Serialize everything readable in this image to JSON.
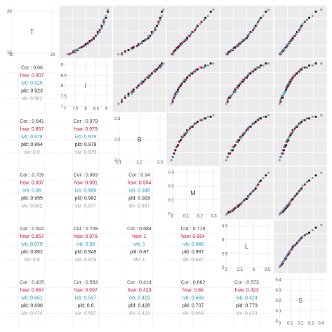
{
  "chart_data": {
    "type": "scatter-matrix",
    "variables": [
      "T",
      "I",
      "B",
      "M",
      "L",
      "S"
    ],
    "groups": [
      {
        "name": "hsw",
        "color": "#c0143c"
      },
      {
        "name": "ivb",
        "color": "#2a9bc4"
      },
      {
        "name": "pld",
        "color": "#2b2b2b"
      },
      {
        "name": "slv",
        "color": "#9e9e9e"
      }
    ],
    "correlations": [
      {
        "row": 1,
        "col": 0,
        "cor": "0.66",
        "hsw": "0.907",
        "ivb": "0.925",
        "pld": "0.923",
        "slv": "0.902"
      },
      {
        "row": 2,
        "col": 0,
        "cor": "0.641",
        "hsw": "0.857",
        "ivb": "0.878",
        "pld": "0.864",
        "slv": "0.9"
      },
      {
        "row": 2,
        "col": 1,
        "cor": "0.979",
        "hsw": "0.979",
        "ivb": "0.979",
        "pld": "0.979",
        "slv": "0.979"
      },
      {
        "row": 3,
        "col": 0,
        "cor": "0.705",
        "hsw": "0.937",
        "ivb": "0.96",
        "pld": "0.955",
        "slv": "0.902"
      },
      {
        "row": 3,
        "col": 1,
        "cor": "0.983",
        "hsw": "0.991",
        "ivb": "0.988",
        "pld": "0.982",
        "slv": "0.977"
      },
      {
        "row": 3,
        "col": 2,
        "cor": "0.94",
        "hsw": "0.954",
        "ivb": "0.948",
        "pld": "0.929",
        "slv": "0.937"
      },
      {
        "row": 4,
        "col": 0,
        "cor": "0.502",
        "hsw": "0.857",
        "ivb": "0.879",
        "pld": "0.862",
        "slv": "0.9"
      },
      {
        "row": 4,
        "col": 1,
        "cor": "0.709",
        "hsw": "0.979",
        "ivb": "0.98",
        "pld": "0.945",
        "slv": "0.979"
      },
      {
        "row": 4,
        "col": 2,
        "cor": "0.684",
        "hsw": "1",
        "ivb": "1",
        "pld": "0.87",
        "slv": "1"
      },
      {
        "row": 4,
        "col": 3,
        "cor": "0.719",
        "hsw": "0.954",
        "ivb": "0.948",
        "pld": "0.987",
        "slv": "0.937"
      },
      {
        "row": 5,
        "col": 0,
        "cor": "0.405",
        "hsw": "0.667",
        "ivb": "0.661",
        "pld": "0.698",
        "slv": "0.474"
      },
      {
        "row": 5,
        "col": 1,
        "cor": "0.583",
        "hsw": "0.597",
        "ivb": "0.597",
        "pld": "0.6",
        "slv": "0.597"
      },
      {
        "row": 5,
        "col": 2,
        "cor": "0.414",
        "hsw": "0.423",
        "ivb": "0.423",
        "pld": "0.428",
        "slv": "0.423"
      },
      {
        "row": 5,
        "col": 3,
        "cor": "0.662",
        "hsw": "0.66",
        "ivb": "0.669",
        "pld": "0.707",
        "slv": "0.663"
      },
      {
        "row": 5,
        "col": 4,
        "cor": "0.573",
        "hsw": "0.423",
        "ivb": "0.424",
        "pld": "0.773",
        "slv": "0.423"
      }
    ],
    "diagonal_ticks": [
      {
        "var": "T",
        "x": [
          "10",
          "20"
        ],
        "y": [
          "20",
          "10"
        ]
      },
      {
        "var": "I",
        "x": [
          "7",
          "7.5",
          "8",
          "8.5",
          "9"
        ],
        "y": [
          "9",
          "8.5",
          "8",
          "7.5",
          "7"
        ]
      },
      {
        "var": "B",
        "x": [
          "2.1",
          "2.2",
          "2.3"
        ],
        "y": [
          "2.3",
          "2.2",
          "2.1"
        ]
      },
      {
        "var": "M",
        "x": [
          "0",
          "0.1",
          "0.2",
          "0.3"
        ],
        "y": [
          "0.3",
          "0.2",
          "0.1",
          "0"
        ]
      },
      {
        "var": "L",
        "x": [
          "2",
          "2.5",
          "3",
          "3.5"
        ],
        "y": [
          "3.5",
          "3",
          "2.5",
          "2"
        ]
      },
      {
        "var": "S",
        "x": [
          "0",
          "0.1",
          "0.2",
          "0.3",
          "0.4"
        ],
        "y": [
          "0.4",
          "0.3",
          "0.2",
          "0.1",
          "0"
        ]
      }
    ],
    "ranges": {
      "T": [
        2,
        26
      ],
      "I": [
        6.9,
        9.3
      ],
      "B": [
        2.04,
        2.33
      ],
      "M": [
        -0.02,
        0.35
      ],
      "L": [
        1.9,
        3.8
      ],
      "S": [
        -0.02,
        0.42
      ]
    },
    "points": {
      "T": [
        3,
        3,
        3.5,
        4,
        4,
        4.5,
        5,
        5,
        5.5,
        6,
        6,
        6.5,
        7,
        7,
        7.5,
        8,
        8,
        8.5,
        9,
        9.5,
        10,
        10,
        10.5,
        11,
        12,
        12,
        13,
        14,
        14,
        15,
        16,
        17,
        18,
        19,
        20,
        21,
        22,
        24,
        25
      ],
      "I": [
        7.2,
        7.3,
        7.4,
        7.5,
        7.6,
        7.5,
        7.6,
        7.7,
        7.7,
        7.8,
        7.8,
        7.9,
        8.0,
        8.0,
        8.1,
        8.1,
        8.2,
        8.2,
        8.3,
        8.3,
        8.4,
        8.4,
        8.5,
        8.5,
        8.6,
        8.6,
        8.7,
        8.7,
        8.8,
        8.8,
        8.9,
        8.9,
        9.0,
        9.0,
        9.0,
        9.1,
        9.1,
        9.2,
        9.2
      ],
      "B": [
        2.06,
        2.08,
        2.08,
        2.1,
        2.1,
        2.1,
        2.12,
        2.12,
        2.14,
        2.14,
        2.15,
        2.15,
        2.17,
        2.17,
        2.18,
        2.18,
        2.19,
        2.2,
        2.2,
        2.21,
        2.22,
        2.22,
        2.23,
        2.24,
        2.24,
        2.25,
        2.26,
        2.26,
        2.27,
        2.28,
        2.28,
        2.29,
        2.3,
        2.3,
        2.31,
        2.31,
        2.32,
        2.32,
        2.33
      ],
      "M": [
        0.0,
        0.01,
        0.01,
        0.02,
        0.02,
        0.02,
        0.03,
        0.03,
        0.04,
        0.04,
        0.05,
        0.05,
        0.06,
        0.06,
        0.07,
        0.07,
        0.08,
        0.08,
        0.09,
        0.1,
        0.1,
        0.11,
        0.12,
        0.12,
        0.13,
        0.14,
        0.15,
        0.16,
        0.17,
        0.18,
        0.19,
        0.2,
        0.22,
        0.23,
        0.25,
        0.26,
        0.28,
        0.3,
        0.32
      ],
      "L": [
        2.05,
        2.1,
        2.1,
        2.15,
        2.2,
        2.2,
        2.25,
        2.3,
        2.3,
        2.35,
        2.4,
        2.4,
        2.45,
        2.5,
        2.5,
        2.55,
        2.6,
        2.6,
        2.65,
        2.7,
        2.7,
        2.75,
        2.8,
        2.85,
        2.9,
        2.9,
        2.95,
        3.0,
        3.05,
        3.1,
        3.15,
        3.2,
        3.25,
        3.3,
        3.35,
        3.4,
        3.5,
        3.6,
        3.7
      ],
      "S": [
        0.01,
        0.02,
        0.02,
        0.03,
        0.03,
        0.04,
        0.04,
        0.05,
        0.05,
        0.06,
        0.06,
        0.07,
        0.07,
        0.08,
        0.08,
        0.09,
        0.09,
        0.1,
        0.1,
        0.11,
        0.11,
        0.12,
        0.13,
        0.13,
        0.14,
        0.15,
        0.16,
        0.17,
        0.18,
        0.19,
        0.2,
        0.21,
        0.22,
        0.24,
        0.26,
        0.28,
        0.31,
        0.34,
        0.39
      ]
    },
    "point_groups": [
      3,
      0,
      1,
      2,
      3,
      0,
      1,
      2,
      3,
      0,
      1,
      2,
      3,
      0,
      1,
      2,
      3,
      0,
      1,
      2,
      3,
      0,
      1,
      2,
      3,
      0,
      1,
      2,
      3,
      0,
      1,
      2,
      3,
      0,
      1,
      2,
      3,
      2,
      3
    ],
    "grid": true,
    "legend": "none"
  }
}
